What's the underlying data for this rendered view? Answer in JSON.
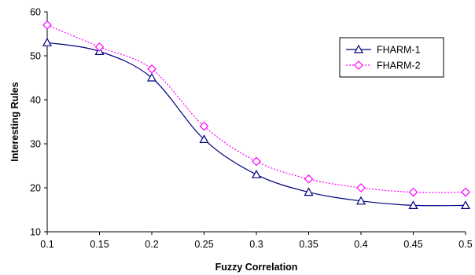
{
  "chart_data": {
    "type": "line",
    "title": "",
    "xlabel": "Fuzzy Correlation",
    "ylabel": "Interesting Rules",
    "x": [
      0.1,
      0.15,
      0.2,
      0.25,
      0.3,
      0.35,
      0.4,
      0.45,
      0.5
    ],
    "x_tick_labels": [
      "0.1",
      "0.15",
      "0.2",
      "0.25",
      "0.3",
      "0.35",
      "0.4",
      "0.45",
      "0.5"
    ],
    "y_tick_labels": [
      "10",
      "20",
      "30",
      "40",
      "50",
      "60"
    ],
    "xlim": [
      0.1,
      0.5
    ],
    "ylim": [
      10,
      60
    ],
    "grid": false,
    "legend_position": "top-right",
    "series": [
      {
        "name": "FHARM-1",
        "values": [
          53,
          51,
          45,
          31,
          23,
          19,
          17,
          16,
          16
        ],
        "color": "#000080",
        "line_style": "solid",
        "marker": "triangle"
      },
      {
        "name": "FHARM-2",
        "values": [
          57,
          52,
          47,
          34,
          26,
          22,
          20,
          19,
          19
        ],
        "color": "#ff00ff",
        "line_style": "dotted",
        "marker": "diamond"
      }
    ]
  }
}
